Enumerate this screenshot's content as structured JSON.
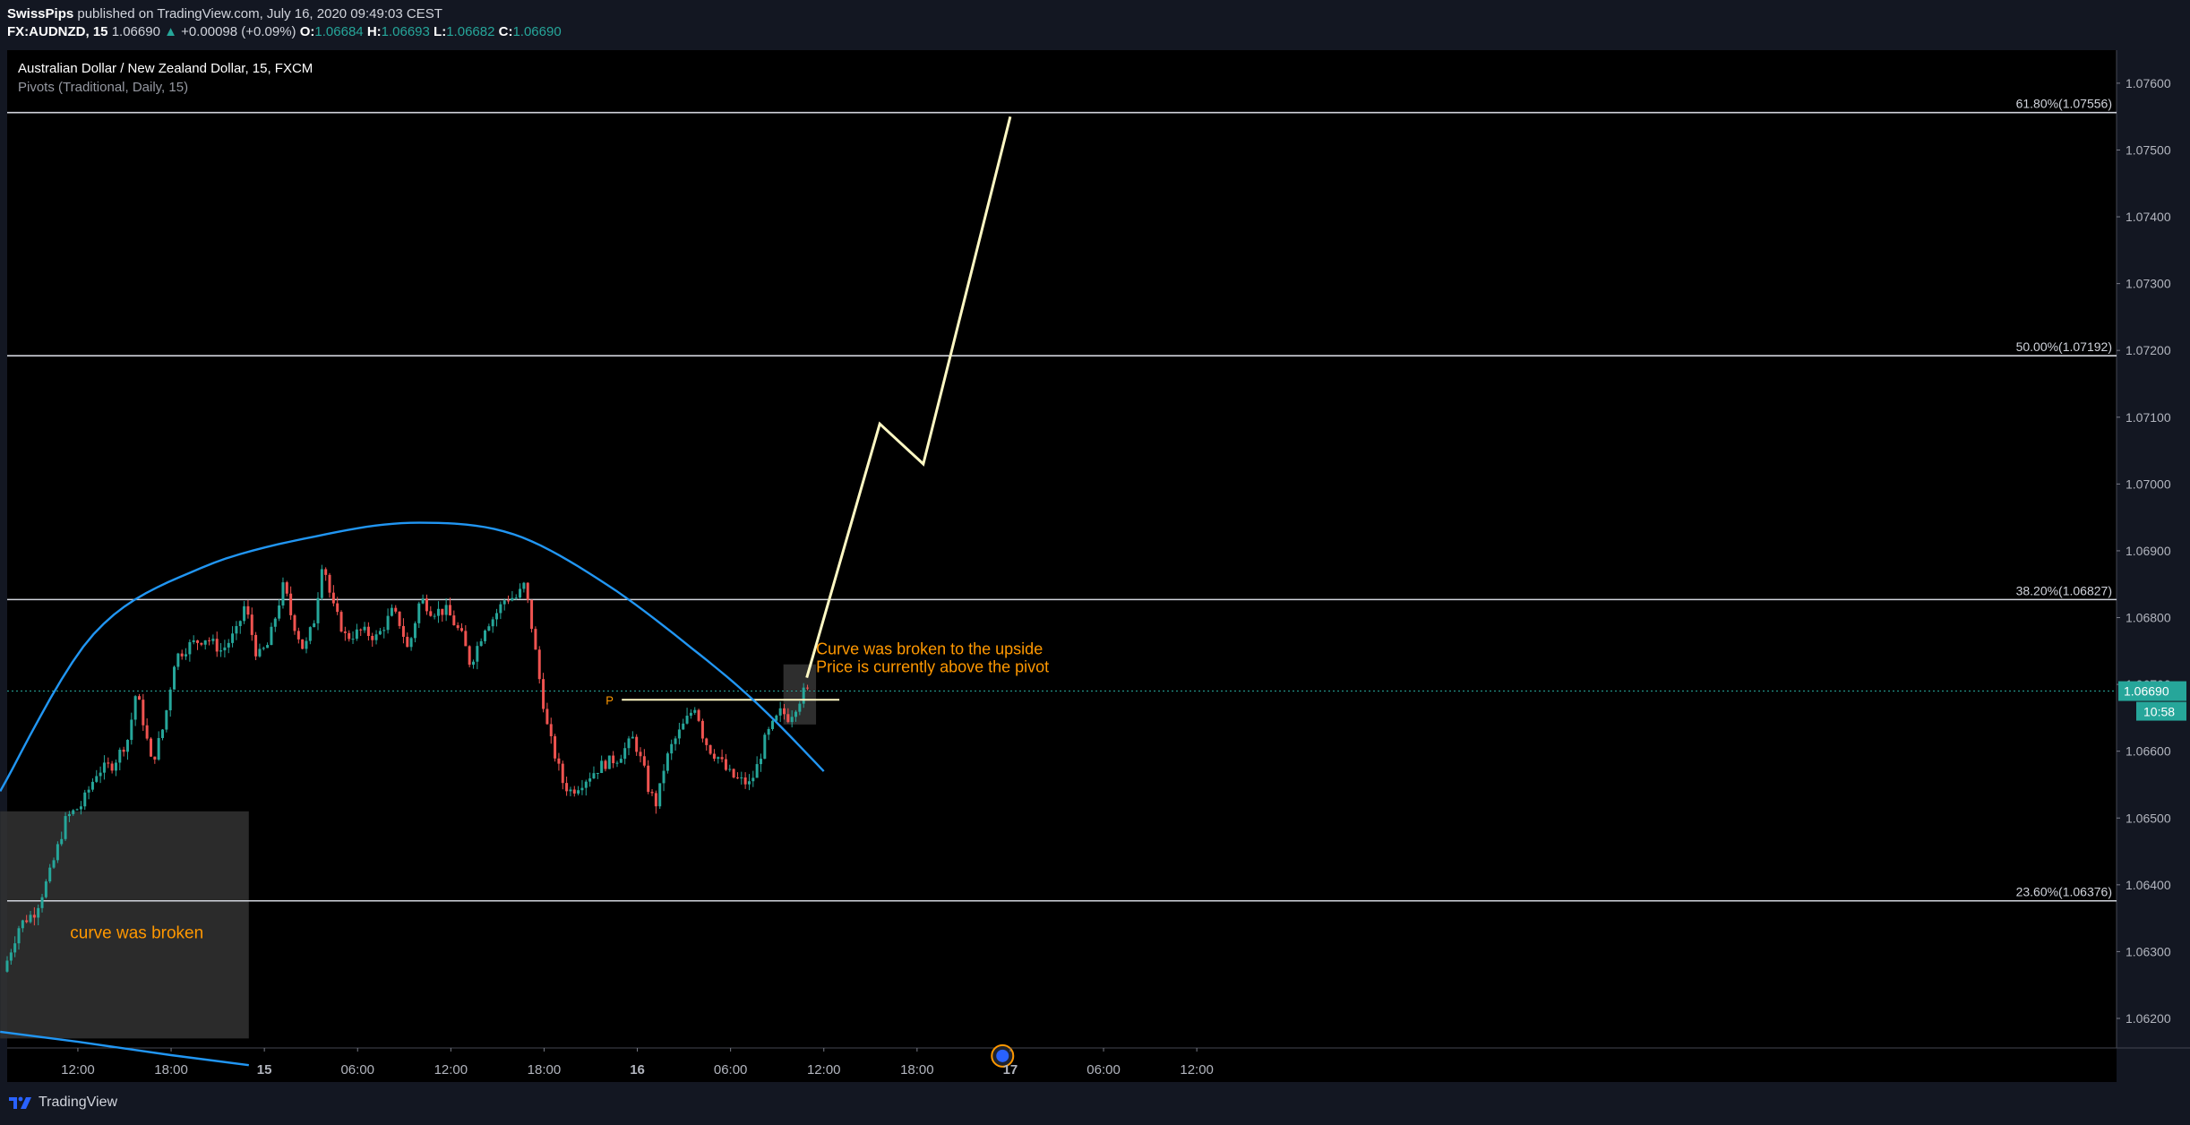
{
  "header": {
    "author": "SwissPips",
    "published": "published on TradingView.com, July 16, 2020 09:49:03 CEST",
    "symbol": "FX:AUDNZD, 15",
    "last": "1.06690",
    "change_arrow": "▲",
    "change": "+0.00098 (+0.09%)",
    "o_label": "O:",
    "o_value": "1.06684",
    "h_label": "H:",
    "h_value": "1.06693",
    "l_label": "L:",
    "l_value": "1.06682",
    "c_label": "C:",
    "c_value": "1.06690"
  },
  "legend": {
    "title": "Australian Dollar / New Zealand Dollar, 15, FXCM",
    "indicator": "Pivots (Traditional, Daily, 15)"
  },
  "footer": {
    "brand": "TradingView",
    "logo_icon": "tradingview-logo-icon"
  },
  "colors": {
    "up": "#26a69a",
    "down": "#ef5350",
    "curve": "#2196f3",
    "projection": "#fff9c4",
    "annotation": "#ff9800",
    "fib_line": "#d1d4dc"
  },
  "chart_data": {
    "type": "candlestick",
    "title": "Australian Dollar / New Zealand Dollar, 15, FXCM",
    "ylim": [
      1.0614,
      1.0762
    ],
    "y_ticks": [
      "1.07600",
      "1.07500",
      "1.07400",
      "1.07300",
      "1.07200",
      "1.07100",
      "1.07000",
      "1.06900",
      "1.06800",
      "1.06700",
      "1.06600",
      "1.06500",
      "1.06400",
      "1.06300",
      "1.06200"
    ],
    "x_ticks": [
      {
        "label": "12:00",
        "t": 12
      },
      {
        "label": "18:00",
        "t": 18
      },
      {
        "label": "15",
        "t": 24,
        "bold": true
      },
      {
        "label": "06:00",
        "t": 30
      },
      {
        "label": "12:00",
        "t": 36
      },
      {
        "label": "18:00",
        "t": 42
      },
      {
        "label": "16",
        "t": 48,
        "bold": true
      },
      {
        "label": "06:00",
        "t": 54
      },
      {
        "label": "12:00",
        "t": 60
      },
      {
        "label": "18:00",
        "t": 66
      },
      {
        "label": "17",
        "t": 72,
        "bold": true
      },
      {
        "label": "06:00",
        "t": 78
      },
      {
        "label": "12:00",
        "t": 84
      }
    ],
    "x_axis_note": "hours since July 14 00:00 (CEST), 15-minute candles",
    "price_anchors": [
      [
        7.45,
        1.0627
      ],
      [
        8.5,
        1.0634
      ],
      [
        9.5,
        1.0636
      ],
      [
        10.5,
        1.0642
      ],
      [
        11.5,
        1.065
      ],
      [
        12.5,
        1.0652
      ],
      [
        13.5,
        1.0657
      ],
      [
        14.5,
        1.0658
      ],
      [
        15.5,
        1.0662
      ],
      [
        16.0,
        1.0669
      ],
      [
        16.5,
        1.0664
      ],
      [
        17.0,
        1.0658
      ],
      [
        17.8,
        1.0664
      ],
      [
        18.5,
        1.0674
      ],
      [
        19.5,
        1.0676
      ],
      [
        20.5,
        1.0677
      ],
      [
        21.5,
        1.0675
      ],
      [
        22.5,
        1.0678
      ],
      [
        23.0,
        1.0682
      ],
      [
        23.8,
        1.0674
      ],
      [
        24.5,
        1.0676
      ],
      [
        25.5,
        1.0685
      ],
      [
        26.0,
        1.068
      ],
      [
        26.8,
        1.0675
      ],
      [
        27.5,
        1.068
      ],
      [
        28.0,
        1.0689
      ],
      [
        28.6,
        1.0682
      ],
      [
        29.5,
        1.0677
      ],
      [
        30.5,
        1.0678
      ],
      [
        31.5,
        1.0677
      ],
      [
        32.5,
        1.0681
      ],
      [
        33.0,
        1.0679
      ],
      [
        33.5,
        1.0675
      ],
      [
        34.3,
        1.0683
      ],
      [
        35.0,
        1.0681
      ],
      [
        36.0,
        1.0681
      ],
      [
        37.0,
        1.0677
      ],
      [
        37.5,
        1.0673
      ],
      [
        38.5,
        1.0679
      ],
      [
        39.0,
        1.068
      ],
      [
        39.8,
        1.0683
      ],
      [
        40.5,
        1.0683
      ],
      [
        41.0,
        1.0685
      ],
      [
        41.5,
        1.0678
      ],
      [
        42.0,
        1.067
      ],
      [
        42.5,
        1.0663
      ],
      [
        43.0,
        1.0659
      ],
      [
        43.5,
        1.0655
      ],
      [
        44.0,
        1.0654
      ],
      [
        45.0,
        1.0656
      ],
      [
        46.0,
        1.0658
      ],
      [
        47.0,
        1.0659
      ],
      [
        48.0,
        1.0662
      ],
      [
        48.7,
        1.0657
      ],
      [
        49.0,
        1.0654
      ],
      [
        49.5,
        1.0652
      ],
      [
        50.0,
        1.0658
      ],
      [
        50.5,
        1.0661
      ],
      [
        51.5,
        1.0665
      ],
      [
        52.0,
        1.0667
      ],
      [
        52.5,
        1.0662
      ],
      [
        53.0,
        1.066
      ],
      [
        53.5,
        1.0659
      ],
      [
        54.0,
        1.0657
      ],
      [
        54.5,
        1.0656
      ],
      [
        55.5,
        1.0655
      ],
      [
        56.0,
        1.0658
      ],
      [
        56.5,
        1.0662
      ],
      [
        57.0,
        1.0664
      ],
      [
        57.5,
        1.0666
      ],
      [
        58.0,
        1.0665
      ],
      [
        58.5,
        1.0667
      ],
      [
        59.0,
        1.0669
      ]
    ],
    "horizontal_levels": [
      {
        "label": "61.80%(1.07556)",
        "value": 1.07556
      },
      {
        "label": "50.00%(1.07192)",
        "value": 1.07192
      },
      {
        "label": "38.20%(1.06827)",
        "value": 1.06827
      },
      {
        "label": "23.60%(1.06376)",
        "value": 1.06376
      }
    ],
    "pivot": {
      "label": "P",
      "value": 1.06677,
      "t_start": 47.0,
      "t_end": 61.0
    },
    "current_price": {
      "value": "1.06690",
      "countdown": "10:58"
    },
    "curve_upper": [
      [
        7.0,
        1.0654
      ],
      [
        13.0,
        1.06775
      ],
      [
        20.0,
        1.06875
      ],
      [
        28.0,
        1.06925
      ],
      [
        34.0,
        1.06942
      ],
      [
        40.0,
        1.06925
      ],
      [
        46.0,
        1.0685
      ],
      [
        52.0,
        1.06745
      ],
      [
        56.0,
        1.06665
      ],
      [
        60.0,
        1.0657
      ]
    ],
    "curve_lower": [
      [
        7.0,
        1.0618
      ],
      [
        12.0,
        1.06165
      ],
      [
        18.0,
        1.06145
      ],
      [
        23.0,
        1.0613
      ]
    ],
    "projection_path": [
      [
        58.9,
        1.0671
      ],
      [
        63.6,
        1.0709
      ],
      [
        66.4,
        1.0703
      ],
      [
        72.0,
        1.0755
      ]
    ],
    "zones": [
      {
        "t0": 7.0,
        "t1": 23.0,
        "y0": 1.0617,
        "y1": 1.0651
      },
      {
        "t0": 57.4,
        "t1": 59.5,
        "y0": 1.0664,
        "y1": 1.0673
      }
    ],
    "annotations": [
      {
        "text": "curve was broken",
        "t": 11.5,
        "y": 1.0632
      },
      {
        "text": "Curve was broken to the upside",
        "t": 59.5,
        "y": 1.06745
      },
      {
        "text": "Price is currently above the pivot",
        "t": 59.5,
        "y": 1.06718
      }
    ],
    "event_marker": {
      "t": 71.5,
      "y": 1.0616,
      "icon": "flag-event-icon"
    }
  }
}
